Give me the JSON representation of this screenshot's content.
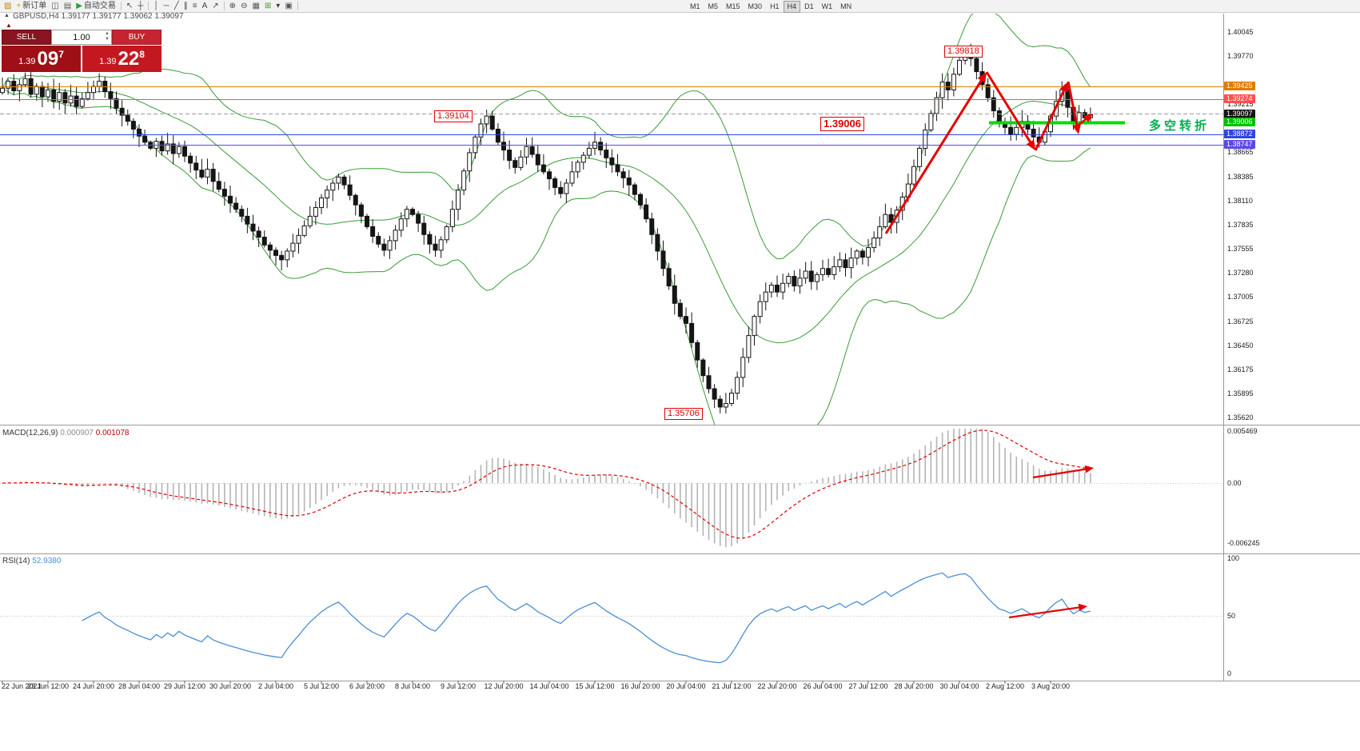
{
  "toolbar": {
    "items": [
      {
        "name": "chart-shift-icon",
        "glyph": "▨",
        "color": "#b8860b"
      },
      {
        "name": "new-order-button",
        "glyph": "+",
        "color": "#d99a10",
        "label": "新订单"
      },
      {
        "name": "chart-windows-icon",
        "glyph": "◫",
        "color": "#555555"
      },
      {
        "name": "profiles-icon",
        "glyph": "▤",
        "color": "#555555"
      },
      {
        "name": "autotrade-button",
        "glyph": "▶",
        "color": "#2e9e2e",
        "label": "自动交易"
      },
      {
        "sep": true
      },
      {
        "name": "cursor-icon",
        "glyph": "↖",
        "color": "#444444"
      },
      {
        "name": "crosshair-icon",
        "glyph": "┼",
        "color": "#444444"
      },
      {
        "sep": true
      },
      {
        "name": "vertical-line-icon",
        "glyph": "│",
        "color": "#444444"
      },
      {
        "name": "horizontal-line-icon",
        "glyph": "─",
        "color": "#444444"
      },
      {
        "name": "trendline-icon",
        "glyph": "╱",
        "color": "#444444"
      },
      {
        "name": "channel-icon",
        "glyph": "∥",
        "color": "#444444"
      },
      {
        "name": "fibonacci-icon",
        "glyph": "≡",
        "color": "#444444"
      },
      {
        "name": "text-label-icon",
        "glyph": "A",
        "color": "#444444"
      },
      {
        "name": "arrow-object-icon",
        "glyph": "↗",
        "color": "#444444"
      },
      {
        "sep": true
      },
      {
        "name": "zoom-in-icon",
        "glyph": "⊕",
        "color": "#444444"
      },
      {
        "name": "zoom-out-icon",
        "glyph": "⊖",
        "color": "#444444"
      },
      {
        "name": "tile-windows-icon",
        "glyph": "▦",
        "color": "#555555"
      },
      {
        "name": "indicators-icon",
        "glyph": "⊞",
        "color": "#2e9e2e"
      },
      {
        "name": "indicator-dropdown-icon",
        "glyph": "▾",
        "color": "#444444"
      },
      {
        "name": "template-icon",
        "glyph": "▣",
        "color": "#555555"
      },
      {
        "sep": true
      }
    ],
    "timeframes": [
      "M1",
      "M5",
      "M15",
      "M30",
      "H1",
      "H4",
      "D1",
      "W1",
      "MN"
    ],
    "active_timeframe": "H4"
  },
  "chart": {
    "symbol": "GBPUSD,H4",
    "ohlc": "1.39177 1.39177 1.39062 1.39097",
    "collapse_arrow": "▲",
    "trade_panel": {
      "sell_label": "SELL",
      "buy_label": "BUY",
      "volume": "1.00",
      "bid": {
        "prefix": "1.39",
        "big": "09",
        "pip": "7"
      },
      "ask": {
        "prefix": "1.39",
        "big": "22",
        "pip": "8"
      }
    },
    "price_axis": {
      "max": 1.40045,
      "min": 1.3562,
      "plain_labels": [
        "1.40045",
        "1.39770",
        "1.39215",
        "1.38665",
        "1.38385",
        "1.38110",
        "1.37835",
        "1.37555",
        "1.37280",
        "1.37005",
        "1.36725",
        "1.36450",
        "1.36175",
        "1.35895",
        "1.35620"
      ],
      "tagged_labels": [
        {
          "value": "1.39425",
          "bg": "#e07c00"
        },
        {
          "value": "1.39274",
          "bg": "#ff4f4f"
        },
        {
          "value": "1.39097",
          "bg": "#151515"
        },
        {
          "value": "1.39006",
          "bg": "#00c000"
        },
        {
          "value": "1.38872",
          "bg": "#2f46e0"
        },
        {
          "value": "1.38747",
          "bg": "#5b48e8"
        }
      ]
    },
    "levels": [
      {
        "price": 1.39425,
        "color": "#e07c00",
        "style": "solid",
        "width": 1,
        "segment": false
      },
      {
        "price": 1.39274,
        "color": "#ff4f4f",
        "style": "solid",
        "width": 1,
        "segment": false
      },
      {
        "price": 1.39104,
        "color": "#9b9b9b",
        "style": "dashed",
        "width": 1,
        "segment": false
      },
      {
        "price": 1.39006,
        "color": "#00dc00",
        "style": "solid",
        "width": 4,
        "segment": true
      },
      {
        "price": 1.38872,
        "color": "#2f46e0",
        "style": "solid",
        "width": 1,
        "segment": false
      },
      {
        "price": 1.38747,
        "color": "#5b48e8",
        "style": "solid",
        "width": 1,
        "segment": false
      }
    ],
    "callouts": {
      "high": "1.39818",
      "mid": "1.39104",
      "level": "1.39006",
      "low": "1.35706"
    },
    "note_cn": "多空转折",
    "colors": {
      "up": "#ffffff",
      "down": "#151515",
      "outline": "#151515",
      "bollinger": "#3a9a3a",
      "annotation": "#e60000",
      "note": "#00b050"
    }
  },
  "macd": {
    "label": "MACD(12,26,9)",
    "value_main": "0.000907",
    "value_signal": "0.001078",
    "axis_labels": [
      "0.005469",
      "0.00",
      "-0.006245"
    ],
    "colors": {
      "histogram": "#b4b4b4",
      "signal": "#e00000"
    }
  },
  "rsi": {
    "label": "RSI(14)",
    "value": "52.9380",
    "axis_labels": [
      "100",
      "50",
      "0"
    ],
    "color": "#4a8fd4"
  },
  "chart_data": {
    "type": "candlestick",
    "symbol": "GBPUSD",
    "timeframe": "H4",
    "title": "GBPUSD,H4",
    "ylim": [
      1.3562,
      1.40045
    ],
    "bars_per_label": 8,
    "x_labels": [
      "22 Jun 2021",
      "23 Jun 12:00",
      "24 Jun 20:00",
      "28 Jun 04:00",
      "29 Jun 12:00",
      "30 Jun 20:00",
      "2 Jul 04:00",
      "5 Jul 12:00",
      "6 Jul 20:00",
      "8 Jul 04:00",
      "9 Jul 12:00",
      "12 Jul 20:00",
      "14 Jul 04:00",
      "15 Jul 12:00",
      "16 Jul 20:00",
      "20 Jul 04:00",
      "21 Jul 12:00",
      "22 Jul 20:00",
      "26 Jul 04:00",
      "27 Jul 12:00",
      "28 Jul 20:00",
      "30 Jul 04:00",
      "2 Aug 12:00",
      "3 Aug 20:00"
    ],
    "closes": [
      1.394,
      1.3948,
      1.3937,
      1.3944,
      1.3951,
      1.3933,
      1.3942,
      1.393,
      1.3938,
      1.3925,
      1.3935,
      1.3923,
      1.3931,
      1.3919,
      1.3928,
      1.3935,
      1.3942,
      1.3948,
      1.3936,
      1.3928,
      1.3917,
      1.3909,
      1.3902,
      1.3893,
      1.3885,
      1.3878,
      1.3871,
      1.3879,
      1.3868,
      1.3876,
      1.3865,
      1.3873,
      1.3862,
      1.3854,
      1.3846,
      1.3838,
      1.3847,
      1.3833,
      1.3824,
      1.3816,
      1.3808,
      1.3801,
      1.3793,
      1.3784,
      1.3776,
      1.3769,
      1.376,
      1.3754,
      1.3748,
      1.3743,
      1.3753,
      1.3762,
      1.3771,
      1.3782,
      1.3793,
      1.3803,
      1.3814,
      1.3823,
      1.3831,
      1.3838,
      1.3829,
      1.3817,
      1.3806,
      1.3793,
      1.3781,
      1.377,
      1.3761,
      1.3754,
      1.3765,
      1.3777,
      1.379,
      1.3801,
      1.3795,
      1.3785,
      1.3772,
      1.3761,
      1.3754,
      1.3766,
      1.3781,
      1.3801,
      1.3823,
      1.3845,
      1.3866,
      1.3884,
      1.3899,
      1.3908,
      1.3893,
      1.3878,
      1.3869,
      1.3857,
      1.3849,
      1.3861,
      1.3873,
      1.3864,
      1.3852,
      1.3844,
      1.3836,
      1.3826,
      1.3819,
      1.3831,
      1.3844,
      1.3855,
      1.3863,
      1.3871,
      1.3878,
      1.3869,
      1.386,
      1.3852,
      1.3844,
      1.3837,
      1.3829,
      1.3818,
      1.3806,
      1.379,
      1.3772,
      1.3753,
      1.3733,
      1.3713,
      1.3693,
      1.3678,
      1.367,
      1.3648,
      1.3628,
      1.361,
      1.3595,
      1.3583,
      1.3574,
      1.3578,
      1.359,
      1.3608,
      1.3631,
      1.3656,
      1.3678,
      1.3695,
      1.3706,
      1.3714,
      1.3706,
      1.3716,
      1.3724,
      1.3713,
      1.3722,
      1.373,
      1.3718,
      1.3726,
      1.3733,
      1.3726,
      1.3735,
      1.3743,
      1.3734,
      1.3745,
      1.3753,
      1.3746,
      1.3757,
      1.3768,
      1.3781,
      1.3795,
      1.3786,
      1.38,
      1.3815,
      1.383,
      1.385,
      1.3871,
      1.3892,
      1.3911,
      1.3929,
      1.3947,
      1.3938,
      1.3956,
      1.3972,
      1.3981,
      1.3974,
      1.3959,
      1.3944,
      1.3929,
      1.3914,
      1.39,
      1.3895,
      1.3887,
      1.3895,
      1.3902,
      1.3893,
      1.3884,
      1.3878,
      1.389,
      1.3908,
      1.3925,
      1.3938,
      1.3918,
      1.39,
      1.3912,
      1.3906,
      1.39097
    ],
    "overlays": {
      "bollinger": {
        "period": 20,
        "deviation": 2
      }
    },
    "indicators": [
      {
        "name": "MACD",
        "params": [
          12,
          26,
          9
        ],
        "current": [
          0.000907,
          0.001078
        ],
        "range": [
          -0.006245,
          0.005469
        ]
      },
      {
        "name": "RSI",
        "params": [
          14
        ],
        "current": 52.938,
        "range": [
          0,
          100
        ]
      }
    ],
    "key_points": {
      "swing_high": 1.39818,
      "swing_low": 1.35706,
      "bid": 1.39097,
      "ask": 1.39228,
      "bar_open": 1.39177,
      "bar_high": 1.39177,
      "bar_low": 1.39062,
      "bar_close": 1.39097
    }
  }
}
